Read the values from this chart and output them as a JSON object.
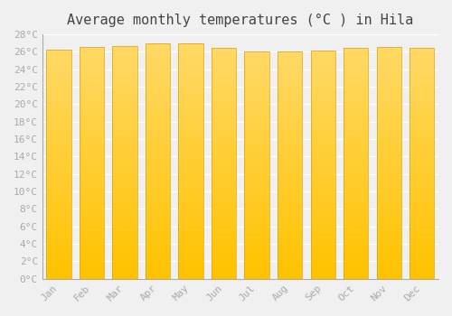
{
  "title": "Average monthly temperatures (°C ) in Hila",
  "months": [
    "Jan",
    "Feb",
    "Mar",
    "Apr",
    "May",
    "Jun",
    "Jul",
    "Aug",
    "Sep",
    "Oct",
    "Nov",
    "Dec"
  ],
  "values": [
    26.3,
    26.6,
    26.7,
    27.0,
    27.0,
    26.5,
    26.0,
    26.0,
    26.1,
    26.5,
    26.6,
    26.5
  ],
  "ylim": [
    0,
    28
  ],
  "yticks": [
    0,
    2,
    4,
    6,
    8,
    10,
    12,
    14,
    16,
    18,
    20,
    22,
    24,
    26,
    28
  ],
  "bar_bottom_color": "#FFC200",
  "bar_top_color": "#FFD966",
  "bar_edge_color": "#E6A000",
  "background_color": "#F0F0F0",
  "grid_color": "#FFFFFF",
  "title_fontsize": 11,
  "tick_fontsize": 8,
  "tick_color": "#AAAAAA",
  "title_color": "#444444"
}
